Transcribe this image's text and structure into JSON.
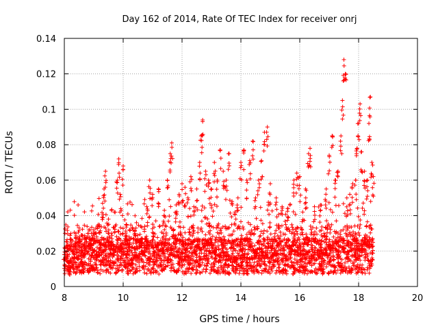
{
  "chart_data": {
    "type": "scatter",
    "title": "Day 162 of 2014, Rate Of TEC Index for receiver onrj",
    "xlabel": "GPS time / hours",
    "ylabel": "ROTI / TECUs",
    "xlim": [
      8,
      20
    ],
    "ylim": [
      0,
      0.14
    ],
    "xticks": [
      8,
      10,
      12,
      14,
      16,
      18,
      20
    ],
    "yticks": [
      0,
      0.02,
      0.04,
      0.06,
      0.08,
      0.1,
      0.12,
      0.14
    ],
    "xtick_labels": [
      "8",
      "10",
      "12",
      "14",
      "16",
      "18",
      "20"
    ],
    "ytick_labels": [
      "0",
      "0.02",
      "0.04",
      "0.06",
      "0.08",
      "0.1",
      "0.12",
      "0.14"
    ],
    "grid": true,
    "marker": "+",
    "series_color": "#ff0000",
    "data_coverage_hours": [
      8.0,
      18.5
    ],
    "series": [
      {
        "name": "ROTI",
        "points": [
          [
            8.0,
            0.018
          ],
          [
            8.1,
            0.022
          ],
          [
            8.2,
            0.015
          ],
          [
            8.3,
            0.02
          ],
          [
            8.4,
            0.027
          ],
          [
            8.5,
            0.033
          ],
          [
            8.6,
            0.029
          ],
          [
            8.7,
            0.024
          ],
          [
            8.8,
            0.03
          ],
          [
            8.9,
            0.026
          ],
          [
            9.0,
            0.03
          ],
          [
            9.1,
            0.028
          ],
          [
            9.2,
            0.034
          ],
          [
            9.3,
            0.047
          ],
          [
            9.35,
            0.055
          ],
          [
            9.4,
            0.065
          ],
          [
            9.5,
            0.038
          ],
          [
            9.6,
            0.03
          ],
          [
            9.7,
            0.042
          ],
          [
            9.8,
            0.06
          ],
          [
            9.85,
            0.072
          ],
          [
            9.9,
            0.052
          ],
          [
            10.0,
            0.068
          ],
          [
            10.1,
            0.035
          ],
          [
            10.2,
            0.028
          ],
          [
            10.4,
            0.03
          ],
          [
            10.6,
            0.034
          ],
          [
            10.8,
            0.045
          ],
          [
            10.9,
            0.06
          ],
          [
            11.0,
            0.052
          ],
          [
            11.2,
            0.055
          ],
          [
            11.4,
            0.043
          ],
          [
            11.5,
            0.06
          ],
          [
            11.6,
            0.075
          ],
          [
            11.65,
            0.081
          ],
          [
            11.8,
            0.046
          ],
          [
            11.9,
            0.052
          ],
          [
            12.0,
            0.058
          ],
          [
            12.1,
            0.056
          ],
          [
            12.2,
            0.05
          ],
          [
            12.3,
            0.062
          ],
          [
            12.4,
            0.045
          ],
          [
            12.5,
            0.055
          ],
          [
            12.6,
            0.07
          ],
          [
            12.65,
            0.085
          ],
          [
            12.7,
            0.094
          ],
          [
            12.8,
            0.065
          ],
          [
            12.9,
            0.06
          ],
          [
            13.0,
            0.055
          ],
          [
            13.1,
            0.07
          ],
          [
            13.2,
            0.06
          ],
          [
            13.3,
            0.077
          ],
          [
            13.4,
            0.065
          ],
          [
            13.5,
            0.06
          ],
          [
            13.6,
            0.075
          ],
          [
            13.7,
            0.048
          ],
          [
            13.8,
            0.042
          ],
          [
            13.9,
            0.05
          ],
          [
            14.0,
            0.07
          ],
          [
            14.1,
            0.077
          ],
          [
            14.2,
            0.06
          ],
          [
            14.3,
            0.071
          ],
          [
            14.4,
            0.082
          ],
          [
            14.5,
            0.05
          ],
          [
            14.6,
            0.06
          ],
          [
            14.7,
            0.071
          ],
          [
            14.8,
            0.087
          ],
          [
            14.9,
            0.09
          ],
          [
            15.0,
            0.058
          ],
          [
            15.2,
            0.05
          ],
          [
            15.4,
            0.045
          ],
          [
            15.6,
            0.044
          ],
          [
            15.8,
            0.06
          ],
          [
            15.9,
            0.064
          ],
          [
            16.0,
            0.062
          ],
          [
            16.1,
            0.042
          ],
          [
            16.2,
            0.055
          ],
          [
            16.3,
            0.075
          ],
          [
            16.35,
            0.078
          ],
          [
            16.5,
            0.045
          ],
          [
            16.7,
            0.046
          ],
          [
            16.9,
            0.055
          ],
          [
            17.0,
            0.074
          ],
          [
            17.1,
            0.085
          ],
          [
            17.2,
            0.06
          ],
          [
            17.3,
            0.065
          ],
          [
            17.4,
            0.085
          ],
          [
            17.45,
            0.105
          ],
          [
            17.5,
            0.128
          ],
          [
            17.55,
            0.12
          ],
          [
            17.6,
            0.05
          ],
          [
            17.7,
            0.052
          ],
          [
            17.8,
            0.058
          ],
          [
            17.9,
            0.06
          ],
          [
            17.95,
            0.078
          ],
          [
            18.0,
            0.092
          ],
          [
            18.05,
            0.103
          ],
          [
            18.1,
            0.076
          ],
          [
            18.2,
            0.065
          ],
          [
            18.3,
            0.06
          ],
          [
            18.35,
            0.092
          ],
          [
            18.4,
            0.107
          ],
          [
            18.45,
            0.07
          ],
          [
            18.5,
            0.062
          ]
        ]
      }
    ]
  }
}
